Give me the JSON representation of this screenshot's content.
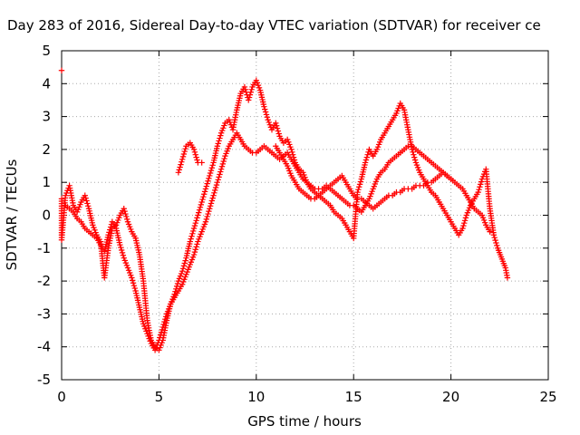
{
  "chart_data": {
    "type": "scatter",
    "title": "Day 283 of 2016, Sidereal Day-to-day VTEC variation (SDTVAR) for receiver ce",
    "xlabel": "GPS time / hours",
    "ylabel": "SDTVAR / TECUs",
    "xlim": [
      0,
      25
    ],
    "ylim": [
      -5,
      5
    ],
    "xticks": [
      "0",
      "5",
      "10",
      "15",
      "20",
      "25"
    ],
    "yticks": [
      "-5",
      "-4",
      "-3",
      "-2",
      "-1",
      "0",
      "1",
      "2",
      "3",
      "4",
      "5"
    ],
    "grid": true,
    "legend": "none",
    "marker": "+",
    "color": "#ff0000",
    "series": [
      {
        "x": [
          0.0,
          0.0,
          0.0,
          0.2,
          0.4,
          0.6,
          0.8,
          1.0,
          1.2,
          1.4,
          1.6,
          1.8,
          2.0,
          2.2,
          2.4,
          2.6,
          2.8,
          3.0,
          3.2,
          3.4,
          3.6,
          3.8,
          4.0,
          4.2,
          4.4,
          4.6,
          4.8,
          5.0,
          5.2,
          5.4,
          5.6,
          5.8,
          6.0,
          6.2,
          6.4,
          6.6,
          6.8,
          7.0,
          7.2,
          7.4,
          7.6,
          7.8,
          8.0,
          8.2,
          8.4,
          8.6,
          8.8,
          9.0,
          9.2,
          9.4,
          9.6,
          9.8,
          10.0,
          10.2,
          10.4,
          10.6,
          10.8,
          11.0,
          11.2,
          11.4,
          11.6,
          11.8,
          12.0,
          12.2,
          12.4,
          12.6,
          12.8,
          13.0,
          13.2,
          13.4,
          13.6,
          13.8,
          14.0,
          14.2,
          14.4,
          14.6,
          14.8,
          15.0,
          15.2,
          15.4,
          15.6,
          15.8,
          16.0,
          16.2,
          16.4,
          16.6,
          16.8,
          17.0,
          17.2,
          17.4,
          17.6,
          17.8,
          18.0,
          18.2,
          18.4,
          18.6,
          18.8,
          19.0,
          19.2,
          19.4,
          19.6,
          19.8,
          20.0,
          20.2,
          20.4,
          20.6,
          20.8,
          21.0,
          21.2,
          21.4,
          21.6,
          21.8,
          22.0,
          22.2,
          22.4,
          22.8,
          22.9
        ],
        "y": [
          4.4,
          0.5,
          -0.75,
          0.6,
          0.9,
          0.3,
          0.1,
          0.4,
          0.6,
          0.2,
          -0.3,
          -0.6,
          -0.8,
          -1.9,
          -1.0,
          -0.4,
          -0.3,
          0.0,
          0.2,
          -0.2,
          -0.5,
          -0.7,
          -1.2,
          -2.0,
          -3.2,
          -3.8,
          -4.0,
          -4.1,
          -3.8,
          -3.2,
          -2.7,
          -2.4,
          -2.0,
          -1.7,
          -1.3,
          -0.8,
          -0.4,
          0.0,
          0.4,
          0.8,
          1.2,
          1.6,
          2.1,
          2.5,
          2.8,
          2.9,
          2.6,
          3.2,
          3.7,
          3.9,
          3.5,
          3.9,
          4.1,
          3.8,
          3.3,
          2.9,
          2.6,
          2.8,
          2.4,
          2.2,
          2.3,
          2.0,
          1.6,
          1.4,
          1.3,
          1.0,
          0.8,
          0.7,
          0.6,
          0.5,
          0.4,
          0.3,
          0.1,
          0.0,
          -0.1,
          -0.3,
          -0.5,
          -0.7,
          0.7,
          1.1,
          1.6,
          2.0,
          1.8,
          2.0,
          2.3,
          2.5,
          2.7,
          2.9,
          3.1,
          3.4,
          3.2,
          2.6,
          2.0,
          1.6,
          1.3,
          1.1,
          0.9,
          0.7,
          0.6,
          0.4,
          0.2,
          0.0,
          -0.2,
          -0.4,
          -0.6,
          -0.4,
          0.0,
          0.3,
          0.5,
          0.7,
          1.1,
          1.4,
          0.2,
          -0.6,
          -1.0,
          -1.6,
          -1.9
        ]
      },
      {
        "x": [
          0.2,
          0.4,
          0.6,
          0.8,
          1.0,
          1.2,
          1.4,
          1.6,
          1.8,
          2.0,
          2.2,
          2.4,
          2.6,
          2.8,
          3.0,
          3.2,
          3.4,
          3.6,
          3.8,
          4.0,
          4.2,
          4.4,
          4.6,
          4.8,
          5.0,
          5.2,
          5.4,
          5.6,
          5.8,
          6.0,
          6.2,
          6.4,
          6.6,
          6.8,
          7.0,
          7.2,
          7.4,
          7.6,
          7.8,
          8.0,
          8.2,
          8.4,
          8.6,
          8.8,
          9.0,
          9.2,
          9.4,
          9.6,
          9.8,
          10.0,
          10.2,
          10.4,
          10.6,
          10.8,
          11.0,
          11.2,
          11.4,
          11.6,
          11.8,
          12.0,
          12.2,
          12.4,
          12.6,
          12.8,
          13.0,
          13.2,
          13.4,
          13.6,
          13.8,
          14.0,
          14.2,
          14.4,
          14.6,
          14.8,
          15.0,
          15.2,
          15.4,
          15.6,
          15.8,
          16.0,
          16.2,
          16.4,
          16.6,
          16.8,
          17.0,
          17.2,
          17.4,
          17.6,
          17.8,
          18.0,
          18.2,
          18.4,
          18.6,
          18.8,
          19.0,
          19.2,
          19.4,
          19.6,
          19.8,
          20.0,
          20.2,
          20.4,
          20.6,
          20.8,
          21.0,
          21.2,
          21.4,
          21.6,
          21.8,
          22.0
        ],
        "y": [
          0.3,
          0.2,
          0.1,
          -0.1,
          -0.2,
          -0.4,
          -0.5,
          -0.6,
          -0.7,
          -0.9,
          -1.1,
          -0.6,
          -0.2,
          -0.4,
          -0.9,
          -1.3,
          -1.6,
          -1.9,
          -2.3,
          -2.8,
          -3.3,
          -3.6,
          -3.9,
          -4.1,
          -3.8,
          -3.4,
          -3.0,
          -2.7,
          -2.5,
          -2.3,
          -2.1,
          -1.8,
          -1.5,
          -1.2,
          -0.8,
          -0.5,
          -0.2,
          0.2,
          0.6,
          1.0,
          1.4,
          1.8,
          2.1,
          2.3,
          2.5,
          2.3,
          2.1,
          2.0,
          1.9,
          1.9,
          2.0,
          2.1,
          2.0,
          1.9,
          1.8,
          1.7,
          1.8,
          1.9,
          1.7,
          1.5,
          1.3,
          1.1,
          1.0,
          0.9,
          0.8,
          0.8,
          0.8,
          0.9,
          0.8,
          0.7,
          0.6,
          0.5,
          0.4,
          0.3,
          0.3,
          0.2,
          0.1,
          0.3,
          0.5,
          0.8,
          1.1,
          1.3,
          1.4,
          1.6,
          1.7,
          1.8,
          1.9,
          2.0,
          2.1,
          2.1,
          2.0,
          1.9,
          1.8,
          1.7,
          1.6,
          1.5,
          1.4,
          1.3,
          1.2,
          1.1,
          1.0,
          0.9,
          0.8,
          0.6,
          0.4,
          0.2,
          0.1,
          0.0,
          -0.3,
          -0.5
        ]
      },
      {
        "x": [
          6.0,
          6.2,
          6.4,
          6.6,
          6.8,
          7.0,
          7.2
        ],
        "y": [
          1.3,
          1.7,
          2.1,
          2.2,
          2.0,
          1.6,
          1.6
        ]
      },
      {
        "x": [
          11.0,
          11.2,
          11.4,
          11.6,
          11.8,
          12.0,
          12.2,
          12.4,
          12.6,
          12.8,
          13.0,
          13.2,
          13.4,
          13.6,
          13.8,
          14.0,
          14.2,
          14.4,
          14.6,
          14.8,
          15.0,
          15.2,
          15.4,
          15.6,
          15.8,
          16.0,
          16.2,
          16.4,
          16.6,
          16.8,
          17.0,
          17.2,
          17.4,
          17.6,
          17.8,
          18.0,
          18.2,
          18.4,
          18.6,
          18.8,
          19.0,
          19.2,
          19.4,
          19.6,
          19.8,
          20.0
        ],
        "y": [
          2.1,
          1.9,
          1.7,
          1.5,
          1.2,
          1.0,
          0.8,
          0.7,
          0.6,
          0.5,
          0.5,
          0.6,
          0.7,
          0.8,
          0.9,
          1.0,
          1.1,
          1.2,
          1.0,
          0.8,
          0.6,
          0.5,
          0.5,
          0.4,
          0.3,
          0.2,
          0.3,
          0.4,
          0.5,
          0.6,
          0.6,
          0.7,
          0.7,
          0.8,
          0.8,
          0.8,
          0.9,
          0.9,
          0.9,
          1.0,
          1.0,
          1.1,
          1.2,
          1.3,
          1.2,
          1.1
        ]
      }
    ]
  }
}
